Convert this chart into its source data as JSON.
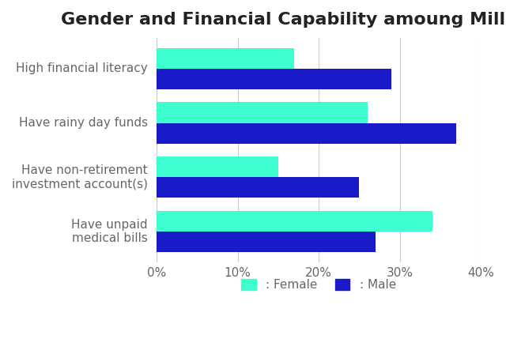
{
  "title": "Gender and Financial Capability amoung Millennials",
  "categories": [
    "High financial literacy",
    "Have rainy day funds",
    "Have non-retirement\ninvestment account(s)",
    "Have unpaid\nmedical bills"
  ],
  "female_values": [
    17,
    26,
    15,
    34
  ],
  "male_values": [
    29,
    37,
    25,
    27
  ],
  "female_color": "#3EFFD0",
  "male_color": "#1A1AC8",
  "xlim": [
    0,
    40
  ],
  "xtick_labels": [
    "0%",
    "10%",
    "20%",
    "30%",
    "40%"
  ],
  "xtick_values": [
    0,
    10,
    20,
    30,
    40
  ],
  "legend_female": ": Female",
  "legend_male": ": Male",
  "background_color": "#ffffff",
  "title_fontsize": 16,
  "label_fontsize": 11,
  "tick_fontsize": 11
}
